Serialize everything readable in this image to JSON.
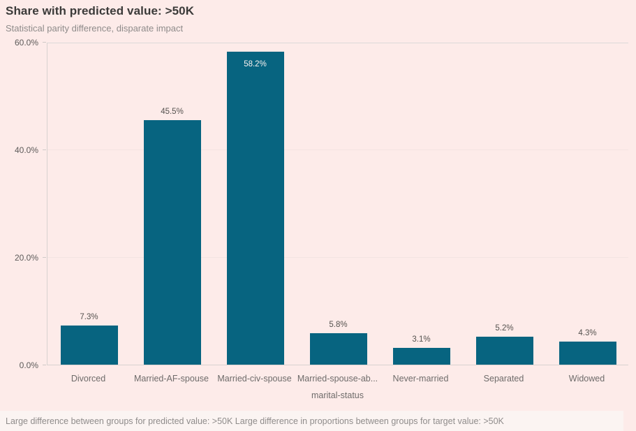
{
  "header": {
    "title": "Share with predicted value: >50K",
    "subtitle": "Statistical parity difference, disparate impact"
  },
  "chart_data": {
    "type": "bar",
    "title": "Share with predicted value: >50K",
    "subtitle": "Statistical parity difference, disparate impact",
    "categories": [
      "Divorced",
      "Married-AF-spouse",
      "Married-civ-spouse",
      "Married-spouse-ab...",
      "Never-married",
      "Separated",
      "Widowed"
    ],
    "values": [
      7.3,
      45.5,
      58.2,
      5.8,
      3.1,
      5.2,
      4.3
    ],
    "value_labels": [
      "7.3%",
      "45.5%",
      "58.2%",
      "5.8%",
      "3.1%",
      "5.2%",
      "4.3%"
    ],
    "xlabel": "marital-status",
    "ylabel": "",
    "ylim": [
      0,
      60
    ],
    "y_ticks": [
      {
        "value": 0,
        "label": "0.0%"
      },
      {
        "value": 20,
        "label": "20.0%"
      },
      {
        "value": 40,
        "label": "40.0%"
      },
      {
        "value": 60,
        "label": "60.0%"
      }
    ],
    "grid": true,
    "legend": "none",
    "bar_color": "#076480"
  },
  "status_bar": {
    "text": "Large difference between groups for predicted value: >50K Large difference in proportions between groups for target value: >50K"
  },
  "colors": {
    "bar": "#076480",
    "page_background": "#fdebe9",
    "status_background": "#fbf4f2",
    "gridline": "#f3e4e1",
    "axis_line": "#d8d2d0"
  }
}
